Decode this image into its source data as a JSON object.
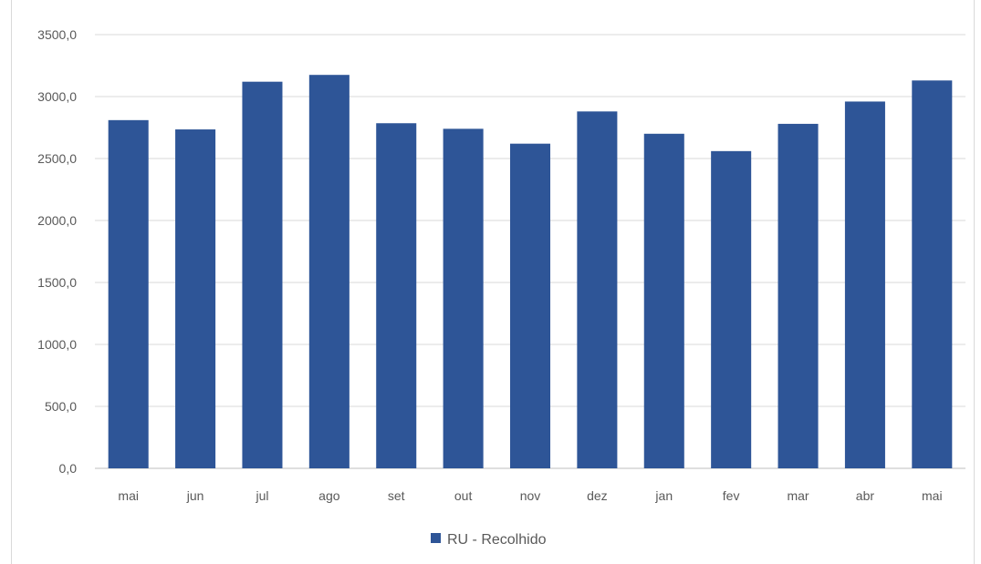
{
  "chart_data": {
    "type": "bar",
    "title": "",
    "xlabel": "",
    "ylabel": "",
    "categories": [
      "mai",
      "jun",
      "jul",
      "ago",
      "set",
      "out",
      "nov",
      "dez",
      "jan",
      "fev",
      "mar",
      "abr",
      "mai"
    ],
    "series": [
      {
        "name": "RU - Recolhido",
        "color": "#2E5597",
        "values": [
          2810,
          2735,
          3120,
          3175,
          2785,
          2740,
          2620,
          2880,
          2700,
          2560,
          2780,
          2960,
          3130
        ]
      }
    ],
    "ylim": [
      0,
      3500
    ],
    "yticks": [
      0,
      500,
      1000,
      1500,
      2000,
      2500,
      3000,
      3500
    ],
    "ytick_labels": [
      "0,0",
      "500,0",
      "1000,0",
      "1500,0",
      "2000,0",
      "2500,0",
      "3000,0",
      "3500,0"
    ],
    "grid": true,
    "legend_position": "bottom"
  }
}
